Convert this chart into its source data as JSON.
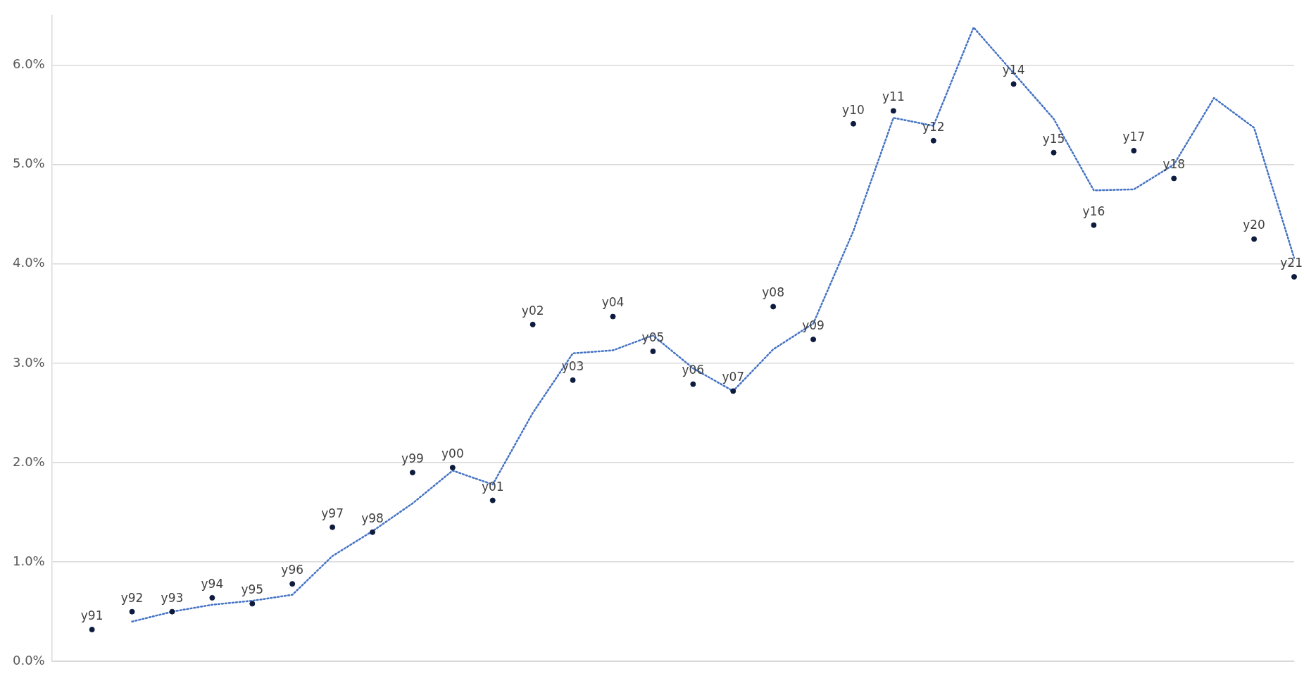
{
  "chart_data": {
    "type": "scatter",
    "categories": [
      null,
      null,
      null,
      null,
      null,
      null,
      null,
      null,
      null,
      null,
      null,
      null,
      null,
      null,
      null,
      null,
      null,
      null,
      null,
      null,
      null,
      null,
      null,
      null,
      null,
      null,
      null,
      null,
      null,
      null,
      null,
      null
    ],
    "ylim": [
      0,
      6.5
    ],
    "yticks": [
      {
        "value": 0,
        "label": "0.0%"
      },
      {
        "value": 1,
        "label": "1.0%"
      },
      {
        "value": 2,
        "label": "2.0%"
      },
      {
        "value": 3,
        "label": "3.0%"
      },
      {
        "value": 4,
        "label": "4.0%"
      },
      {
        "value": 5,
        "label": "5.0%"
      },
      {
        "value": 6,
        "label": "6.0%"
      }
    ],
    "grid": "y",
    "legend": false,
    "tick_labels": "y",
    "series": [
      {
        "type": "scatter",
        "color": "#0d1b3e",
        "marker": "circle",
        "values": [
          null,
          0.32,
          0.5,
          0.5,
          0.64,
          0.58,
          0.78,
          1.35,
          1.3,
          1.9,
          1.95,
          1.62,
          3.39,
          2.83,
          3.47,
          3.12,
          2.79,
          2.72,
          3.57,
          3.24,
          5.41,
          5.54,
          5.24,
          null,
          5.81,
          5.12,
          4.39,
          5.14,
          4.86,
          null,
          4.25,
          3.87
        ],
        "value_labels": [
          null,
          "y91",
          "y92",
          "y93",
          "y94",
          "y95",
          "y96",
          "y97",
          "y98",
          "y99",
          "y00",
          "y01",
          "y02",
          "y03",
          "y04",
          "y05",
          "y06",
          "y07",
          "y08",
          "y09",
          "y10",
          "y11",
          "y12",
          null,
          "y14",
          "y15",
          "y16",
          "y17",
          "y18",
          null,
          "y20",
          "y21"
        ]
      },
      {
        "type": "line",
        "color": "#4472c4",
        "marker": "none",
        "line_style": "dotted",
        "values": [
          null,
          null,
          0.4,
          0.5,
          0.57,
          0.61,
          0.67,
          1.06,
          1.31,
          1.59,
          1.92,
          1.78,
          2.5,
          3.1,
          3.13,
          3.28,
          2.95,
          2.72,
          3.14,
          3.4,
          4.33,
          5.47,
          5.39,
          6.38,
          null,
          5.46,
          4.74,
          4.75,
          5.0,
          5.67,
          5.37,
          4.06
        ]
      }
    ]
  }
}
